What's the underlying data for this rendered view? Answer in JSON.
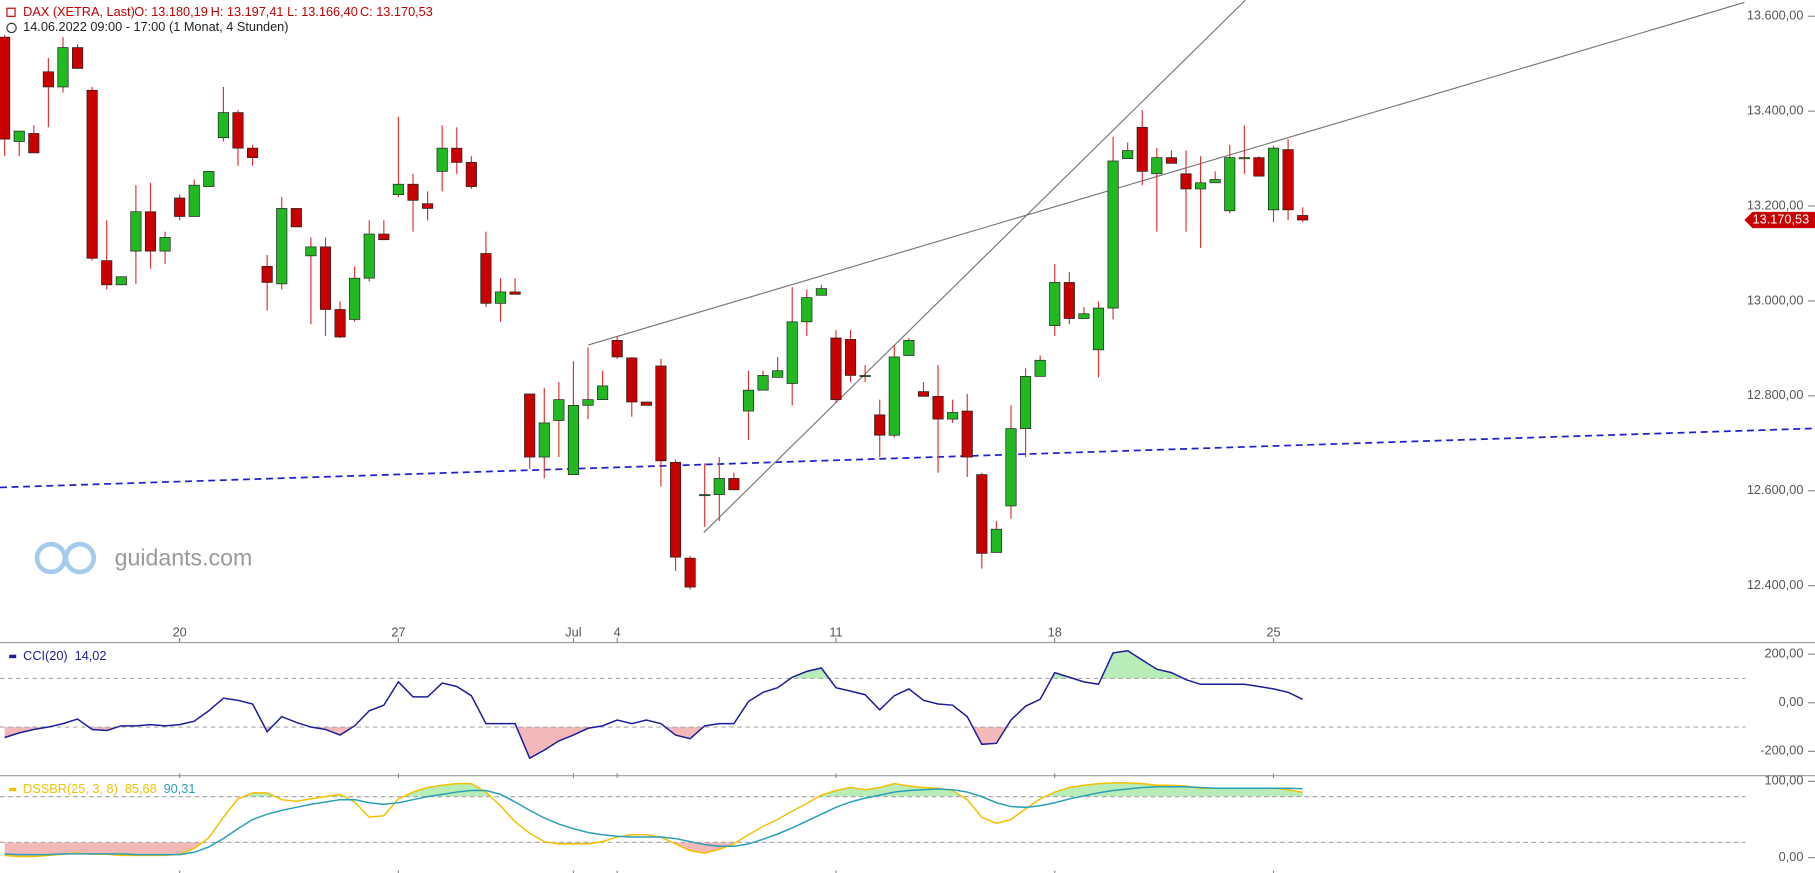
{
  "header": {
    "title": "DAX (XETRA, Last)",
    "ohlc": [
      "O: 13.180,19",
      "H: 13.197,41",
      "L: 13.166,40",
      "C: 13.170,53"
    ],
    "period": "14.06.2022 09:00 - 17:00",
    "range": "(1 Monat, 4 Stunden)"
  },
  "watermark": "guidants.com",
  "chart_data": [
    {
      "type": "candlestick",
      "up_color": "#22b822",
      "down_color": "#c80000",
      "wick_color": "#e03030",
      "categories": [
        null,
        null,
        null,
        null,
        null,
        null,
        null,
        null,
        null,
        null,
        null,
        null,
        "20",
        null,
        null,
        null,
        null,
        null,
        null,
        null,
        null,
        null,
        null,
        null,
        null,
        null,
        null,
        "27",
        null,
        null,
        null,
        null,
        null,
        null,
        null,
        null,
        null,
        null,
        null,
        "Jul",
        null,
        null,
        "4",
        null,
        null,
        null,
        null,
        null,
        null,
        null,
        null,
        null,
        null,
        null,
        null,
        null,
        null,
        "11",
        null,
        null,
        null,
        null,
        null,
        null,
        null,
        null,
        null,
        null,
        null,
        null,
        null,
        null,
        "18",
        null,
        null,
        null,
        null,
        null,
        null,
        null,
        null,
        null,
        null,
        null,
        null,
        null,
        null,
        "25",
        null,
        null
      ],
      "open": [
        13556,
        13336,
        13353,
        13483,
        13451,
        13534,
        13444,
        13085,
        13034,
        13105,
        13188,
        13105,
        13217,
        13178,
        13241,
        13344,
        13397,
        13322,
        13073,
        13036,
        13195,
        13095,
        13114,
        12982,
        12961,
        13048,
        13141,
        13224,
        13246,
        13205,
        13273,
        13322,
        13292,
        13100,
        12995,
        13019,
        12804,
        12671,
        12748,
        12634,
        12780,
        12792,
        12917,
        12880,
        12787,
        12863,
        12660,
        12458,
        12592,
        12592,
        12626,
        12768,
        12812,
        12839,
        12826,
        12956,
        13012,
        12922,
        12919,
        12843,
        12760,
        12717,
        12885,
        12809,
        12799,
        12751,
        12768,
        12634,
        12470,
        12568,
        12731,
        12841,
        12948,
        13039,
        12963,
        12897,
        12985,
        13300,
        13366,
        13268,
        13302,
        13268,
        13236,
        13249,
        13190,
        13302,
        13302,
        13192,
        13319,
        13180.19
      ],
      "high": [
        13561,
        13358,
        13370,
        13512,
        13556,
        13541,
        13451,
        13170,
        13051,
        13244,
        13249,
        13146,
        13224,
        13256,
        13273,
        13451,
        13402,
        13329,
        13097,
        13219,
        13195,
        13134,
        13134,
        12999,
        13073,
        13170,
        13170,
        13388,
        13268,
        13231,
        13370,
        13366,
        13305,
        13146,
        13048,
        13048,
        12804,
        12817,
        12829,
        12873,
        12902,
        12853,
        12926,
        12882,
        12787,
        12878,
        12666,
        12463,
        12658,
        12671,
        12638,
        12853,
        12853,
        12882,
        13029,
        13024,
        13034,
        12939,
        12939,
        12865,
        12792,
        12907,
        12922,
        12829,
        12865,
        12792,
        12804,
        12638,
        12536,
        12780,
        12858,
        12885,
        13078,
        13061,
        12987,
        12999,
        13346,
        13334,
        13402,
        13322,
        13317,
        13317,
        13305,
        13273,
        13329,
        13370,
        13305,
        13327,
        13341,
        13197.41
      ],
      "low": [
        13305,
        13305,
        13312,
        13366,
        13439,
        13490,
        13085,
        13024,
        13034,
        13036,
        13068,
        13078,
        13170,
        13178,
        13241,
        13336,
        13285,
        13285,
        12980,
        13024,
        13156,
        12951,
        12926,
        12922,
        12956,
        13041,
        13129,
        13219,
        13146,
        13170,
        13231,
        13268,
        13236,
        12987,
        12956,
        13014,
        12646,
        12626,
        12671,
        12634,
        12751,
        12792,
        12878,
        12756,
        12780,
        12609,
        12431,
        12392,
        12524,
        12536,
        12602,
        12707,
        12812,
        12839,
        12780,
        12926,
        13012,
        12785,
        12829,
        12829,
        12671,
        12712,
        12885,
        12799,
        12638,
        12743,
        12629,
        12436,
        12470,
        12541,
        12671,
        12841,
        12926,
        12951,
        12963,
        12839,
        12961,
        13300,
        13244,
        13146,
        13290,
        13146,
        13112,
        13249,
        13185,
        13268,
        13263,
        13166,
        13170,
        13166.4
      ],
      "close": [
        13341,
        13358,
        13312,
        13451,
        13534,
        13490,
        13090,
        13034,
        13051,
        13188,
        13105,
        13134,
        13178,
        13244,
        13273,
        13397,
        13322,
        13302,
        13039,
        13195,
        13156,
        13114,
        12982,
        12924,
        13048,
        13141,
        13129,
        13246,
        13212,
        13195,
        13322,
        13292,
        13241,
        12995,
        13019,
        13014,
        12671,
        12743,
        12792,
        12780,
        12792,
        12821,
        12882,
        12787,
        12780,
        12663,
        12460,
        12397,
        12592,
        12626,
        12602,
        12812,
        12843,
        12853,
        12956,
        13007,
        13026,
        12792,
        12843,
        12843,
        12717,
        12882,
        12917,
        12799,
        12751,
        12765,
        12671,
        12468,
        12519,
        12731,
        12841,
        12875,
        13039,
        12963,
        12973,
        12985,
        13295,
        13317,
        13273,
        13302,
        13290,
        13236,
        13249,
        13256,
        13302,
        13302,
        13263,
        13322,
        13192,
        13170.53
      ],
      "ylim": [
        12285,
        13634
      ],
      "yticks": [
        {
          "value": 13600,
          "label": "13.600,00"
        },
        {
          "value": 13400,
          "label": "13.400,00"
        },
        {
          "value": 13200,
          "label": "13.200,00"
        },
        {
          "value": 13000,
          "label": "13.000,00"
        },
        {
          "value": 12800,
          "label": "12.800,00"
        },
        {
          "value": 12600,
          "label": "12.600,00"
        },
        {
          "value": 12400,
          "label": "12.400,00"
        }
      ],
      "last": {
        "value": 13170.53,
        "label": "13.170,53"
      },
      "last_color": "#c80000"
    },
    {
      "type": "line",
      "ylim": [
        -300,
        243
      ],
      "yticks": [
        {
          "value": 200,
          "label": "200,00"
        },
        {
          "value": 0,
          "label": "0,00"
        },
        {
          "value": -200,
          "label": "-200,00"
        }
      ],
      "levels": [
        {
          "value": 100,
          "side": "above",
          "fill": "#a6e8a6"
        },
        {
          "value": -100,
          "side": "below",
          "fill": "#f0a8a8"
        }
      ],
      "series": [
        {
          "name": "CCI(20)",
          "last_label": "14,02",
          "color": "#1c1c9c",
          "values": [
            -143,
            -124,
            -110,
            -100,
            -86,
            -67,
            -110,
            -114,
            -95,
            -95,
            -90,
            -95,
            -90,
            -76,
            -33,
            19,
            10,
            -5,
            -119,
            -57,
            -81,
            -100,
            -110,
            -133,
            -95,
            -33,
            -10,
            86,
            24,
            24,
            81,
            67,
            29,
            -86,
            -86,
            -86,
            -228,
            -195,
            -157,
            -133,
            -105,
            -95,
            -71,
            -86,
            -71,
            -86,
            -133,
            -148,
            -95,
            -86,
            -86,
            5,
            43,
            62,
            105,
            129,
            143,
            62,
            48,
            33,
            -29,
            29,
            57,
            10,
            -5,
            -10,
            -57,
            -171,
            -167,
            -71,
            -14,
            14,
            124,
            105,
            86,
            76,
            205,
            214,
            176,
            138,
            124,
            95,
            76,
            76,
            76,
            76,
            67,
            57,
            43,
            14.02
          ]
        }
      ]
    },
    {
      "type": "line",
      "ylim": [
        -20,
        106
      ],
      "yticks": [
        {
          "value": 100,
          "label": "100,00"
        },
        {
          "value": 0,
          "label": "0,00"
        }
      ],
      "levels": [
        {
          "value": 80,
          "side": "above",
          "fill": "#a6e8a6"
        },
        {
          "value": 20,
          "side": "below",
          "fill": "#f0a8a8"
        }
      ],
      "series": [
        {
          "name": "DSSBR(25, 3, 8)",
          "last_label": "85,68",
          "color": "#f2c200",
          "values": [
            3,
            1.5,
            1.5,
            3,
            4.5,
            6,
            4.5,
            4.5,
            3,
            3,
            3,
            3,
            4.5,
            12,
            26,
            53,
            77,
            85,
            85,
            76,
            74,
            77,
            80,
            83,
            73,
            53,
            55,
            77,
            86,
            92,
            95,
            97,
            97,
            86,
            68,
            47,
            32,
            21,
            18,
            18,
            18,
            21,
            27,
            30,
            30,
            27,
            18,
            9,
            6,
            11,
            18,
            30,
            41,
            50,
            61,
            71,
            82,
            88,
            92,
            89,
            92,
            97,
            94,
            92,
            91,
            88,
            76,
            53,
            45,
            50,
            64,
            77,
            86,
            92,
            95,
            97,
            98,
            98,
            97,
            95,
            95,
            94,
            91,
            91,
            91,
            91,
            91,
            91,
            89,
            85.68
          ]
        },
        {
          "last_label": "90,31",
          "color": "#2a9fb8",
          "values": [
            5,
            4,
            4,
            4,
            5,
            5,
            5,
            5,
            5,
            4,
            4,
            4,
            4,
            7,
            14,
            25,
            38,
            50,
            57,
            62,
            66,
            70,
            73,
            76,
            76,
            72,
            70,
            72,
            76,
            80,
            83,
            86,
            88,
            88,
            83,
            73,
            62,
            52,
            44,
            38,
            33,
            30,
            28,
            27,
            27,
            27,
            25,
            21,
            17,
            15,
            15,
            18,
            24,
            31,
            39,
            48,
            57,
            66,
            73,
            78,
            82,
            86,
            88,
            89,
            90,
            89,
            86,
            80,
            72,
            67,
            66,
            68,
            72,
            77,
            81,
            85,
            88,
            90,
            92,
            93,
            93,
            93,
            92,
            91,
            91,
            91,
            91,
            91,
            91,
            90.31
          ]
        }
      ]
    }
  ]
}
